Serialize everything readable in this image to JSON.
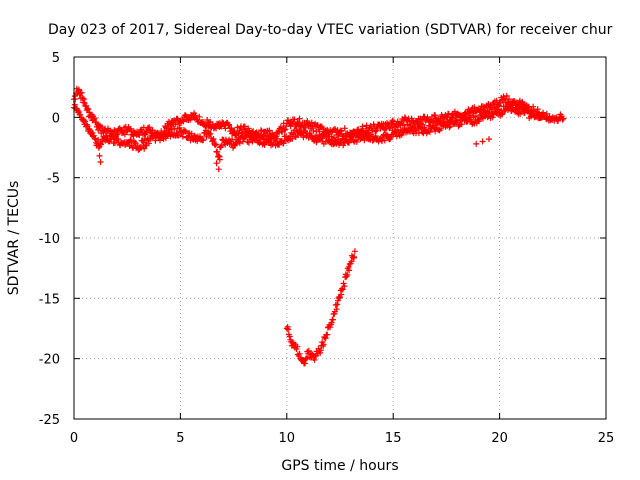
{
  "chart_data": {
    "type": "scatter",
    "title": "Day 023 of 2017, Sidereal Day-to-day VTEC variation (SDTVAR) for receiver chur",
    "xlabel": "GPS time / hours",
    "ylabel": "SDTVAR / TECUs",
    "xlim": [
      0,
      25
    ],
    "ylim": [
      -25,
      5
    ],
    "xticks": [
      0,
      5,
      10,
      15,
      20,
      25
    ],
    "yticks": [
      -25,
      -20,
      -15,
      -10,
      -5,
      0,
      5
    ],
    "grid": true,
    "marker": "+",
    "color": "#ff0000",
    "series": [
      {
        "name": "main-trace-upper",
        "x": [
          0.0,
          0.1,
          0.2,
          0.3,
          0.4,
          0.5,
          0.6,
          0.8,
          1.0,
          1.2,
          1.5,
          2.0,
          2.5,
          3.0,
          3.5,
          4.0,
          4.5,
          5.0,
          5.5,
          6.0,
          6.5,
          7.0,
          7.5,
          8.0,
          8.5,
          9.0,
          9.5,
          10.0,
          10.5,
          11.0,
          11.5,
          12.0,
          12.5,
          13.0,
          13.5,
          14.0,
          14.5,
          15.0,
          15.5,
          16.0,
          16.5,
          17.0,
          17.5,
          18.0,
          18.5,
          19.0,
          19.5,
          20.0,
          20.3,
          20.6,
          21.0,
          21.5,
          22.0,
          22.5,
          23.0
        ],
        "y": [
          1.5,
          2.0,
          2.2,
          2.0,
          1.6,
          1.2,
          0.6,
          0.0,
          -0.4,
          -0.9,
          -1.2,
          -1.3,
          -1.1,
          -1.4,
          -1.0,
          -1.6,
          -0.6,
          -0.3,
          0.2,
          -0.4,
          -0.7,
          -0.5,
          -1.2,
          -1.0,
          -1.5,
          -1.2,
          -1.6,
          -0.5,
          -0.4,
          -0.6,
          -1.0,
          -1.4,
          -1.2,
          -1.3,
          -1.1,
          -0.9,
          -0.8,
          -0.6,
          -0.3,
          -0.5,
          -0.2,
          -0.1,
          0.0,
          0.2,
          0.4,
          0.6,
          0.8,
          1.2,
          1.5,
          1.3,
          1.0,
          0.6,
          0.2,
          0.0,
          -0.1
        ]
      },
      {
        "name": "main-trace-lower",
        "x": [
          0.0,
          0.2,
          0.4,
          0.6,
          0.8,
          1.0,
          1.2,
          1.5,
          2.0,
          2.5,
          3.0,
          3.5,
          4.0,
          4.5,
          5.0,
          5.5,
          6.0,
          6.3,
          6.6,
          6.8,
          7.0,
          7.5,
          8.0,
          8.5,
          9.0,
          9.5,
          10.0,
          10.5,
          11.0,
          11.5,
          12.0,
          12.5,
          13.0,
          13.5,
          14.0,
          14.5,
          15.0,
          15.5,
          16.0,
          16.5,
          17.0,
          17.5,
          18.0,
          18.5,
          19.0,
          19.5,
          20.0,
          20.5,
          21.0,
          21.5,
          22.0
        ],
        "y": [
          0.8,
          0.4,
          -0.2,
          -0.6,
          -1.2,
          -1.8,
          -2.4,
          -1.6,
          -1.9,
          -2.1,
          -2.4,
          -1.9,
          -1.6,
          -1.3,
          -1.2,
          -1.6,
          -1.8,
          -1.2,
          -2.2,
          -3.2,
          -1.9,
          -2.2,
          -1.7,
          -1.9,
          -2.0,
          -2.0,
          -1.8,
          -1.2,
          -1.5,
          -1.8,
          -1.9,
          -2.1,
          -1.9,
          -1.7,
          -1.6,
          -1.7,
          -1.4,
          -1.2,
          -1.0,
          -1.1,
          -0.9,
          -0.6,
          -0.4,
          -0.3,
          -0.2,
          0.1,
          0.4,
          0.9,
          0.5,
          0.2,
          0.0
        ]
      },
      {
        "name": "main-trace-extremes",
        "x": [
          1.2,
          1.25,
          6.7,
          6.8,
          6.85,
          3.3,
          18.9,
          19.2,
          19.5
        ],
        "y": [
          -3.2,
          -3.7,
          -3.8,
          -4.3,
          -3.5,
          -2.6,
          -2.2,
          -2.0,
          -1.8
        ],
        "scatter": 0
      },
      {
        "name": "secondary-trace",
        "x": [
          10.0,
          10.1,
          10.2,
          10.3,
          10.45,
          10.6,
          10.75,
          10.85,
          10.9,
          11.0,
          11.15,
          11.3,
          11.45,
          11.6,
          11.8,
          12.0,
          12.2,
          12.4,
          12.6,
          12.8,
          13.0,
          13.1,
          13.2
        ],
        "y": [
          -17.5,
          -18.0,
          -18.6,
          -18.9,
          -19.2,
          -19.6,
          -20.1,
          -20.4,
          -20.0,
          -19.6,
          -19.9,
          -20.1,
          -19.6,
          -19.3,
          -18.3,
          -17.2,
          -16.3,
          -15.2,
          -14.2,
          -13.2,
          -12.1,
          -11.6,
          -11.1
        ]
      }
    ]
  }
}
